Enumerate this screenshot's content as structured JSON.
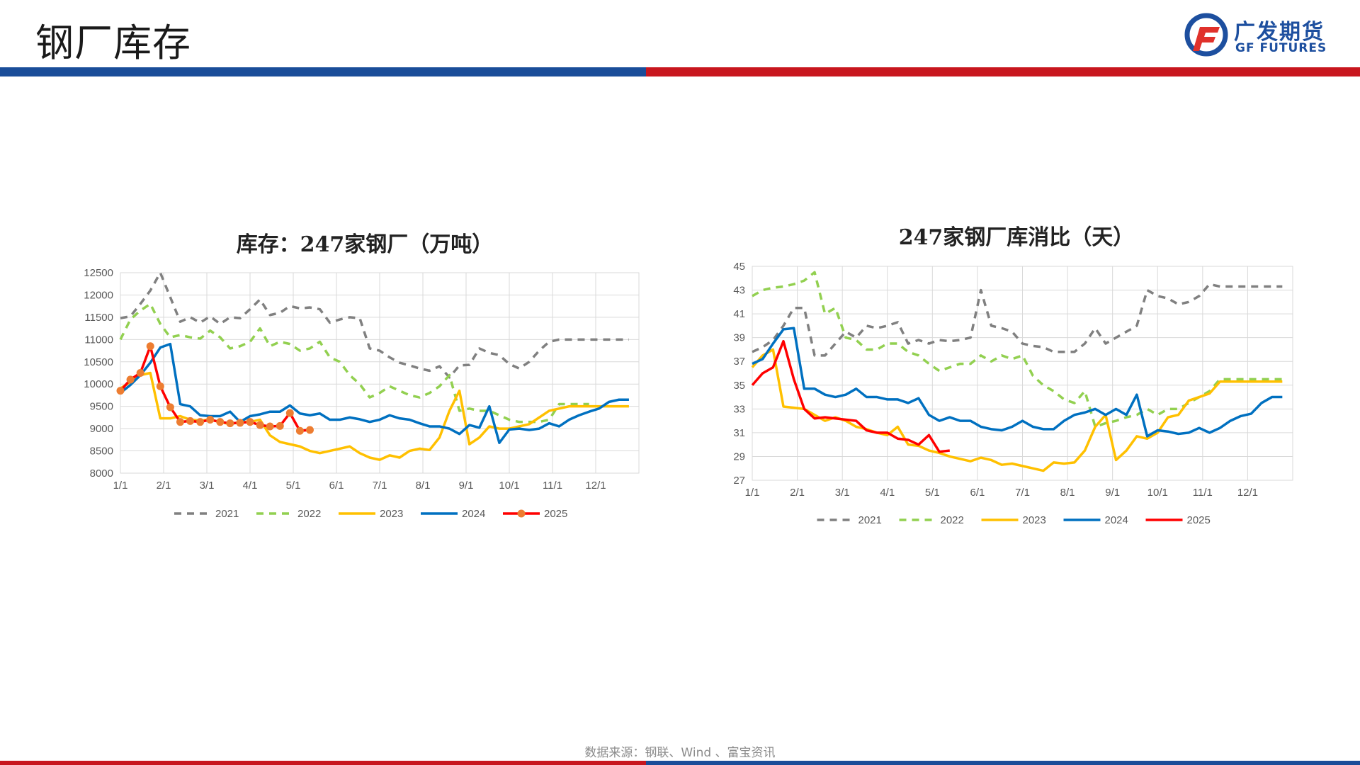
{
  "header": {
    "title": "钢厂库存"
  },
  "logo": {
    "cn": "广发期货",
    "en": "GF FUTURES"
  },
  "colors": {
    "blue": "#1a4d99",
    "red": "#c8161e",
    "c2021": "#808080",
    "c2022": "#92d050",
    "c2023": "#ffc000",
    "c2024": "#0070c0",
    "c2025": "#ff0000",
    "marker2025": "#ed7d31"
  },
  "source": "数据来源：钢联、Wind 、富宝资讯",
  "chart_data": [
    {
      "type": "line",
      "title": "库存：247家钢厂（万吨）",
      "xlabel": "",
      "ylabel": "",
      "x_ticks": [
        "1/1",
        "2/1",
        "3/1",
        "4/1",
        "5/1",
        "6/1",
        "7/1",
        "8/1",
        "9/1",
        "10/1",
        "11/1",
        "12/1"
      ],
      "x_range": [
        0,
        52
      ],
      "y_ticks": [
        "8000",
        "8500",
        "9000",
        "9500",
        "10000",
        "10500",
        "11000",
        "11500",
        "12000",
        "12500"
      ],
      "ylim": [
        8000,
        12500
      ],
      "grid": true,
      "legend": "bottom",
      "series": [
        {
          "name": "2021",
          "color": "#808080",
          "dash": "10,8",
          "marker": false,
          "x": [
            0,
            1,
            2,
            3,
            4,
            5,
            6,
            7,
            8,
            9,
            10,
            11,
            12,
            13,
            14,
            15,
            16,
            17,
            18,
            19,
            20,
            21,
            22,
            23,
            24,
            25,
            26,
            27,
            28,
            29,
            30,
            31,
            32,
            33,
            34,
            35,
            36,
            37,
            38,
            39,
            40,
            41,
            42,
            43,
            44,
            45,
            46,
            47,
            48,
            49,
            50,
            51
          ],
          "values": [
            11480,
            11520,
            11800,
            12100,
            12500,
            11950,
            11400,
            11500,
            11380,
            11520,
            11350,
            11500,
            11480,
            11680,
            11900,
            11550,
            11600,
            11750,
            11700,
            11720,
            11680,
            11380,
            11450,
            11500,
            11480,
            10800,
            10750,
            10600,
            10480,
            10420,
            10350,
            10300,
            10400,
            10150,
            10420,
            10430,
            10800,
            10700,
            10650,
            10450,
            10350,
            10500,
            10750,
            10950,
            11000,
            11000,
            11000,
            11000,
            11000,
            11000,
            11000,
            11000
          ]
        },
        {
          "name": "2022",
          "color": "#92d050",
          "dash": "10,8",
          "marker": false,
          "x": [
            0,
            1,
            2,
            3,
            4,
            5,
            6,
            7,
            8,
            9,
            10,
            11,
            12,
            13,
            14,
            15,
            16,
            17,
            18,
            19,
            20,
            21,
            22,
            23,
            24,
            25,
            26,
            27,
            28,
            29,
            30,
            31,
            32,
            33,
            34,
            35,
            36,
            37,
            38,
            39,
            40,
            41,
            42,
            43,
            44,
            45,
            46,
            47
          ],
          "values": [
            11000,
            11450,
            11650,
            11800,
            11350,
            11050,
            11100,
            11050,
            11020,
            11200,
            11050,
            10800,
            10850,
            10950,
            11250,
            10850,
            10950,
            10900,
            10750,
            10800,
            10950,
            10600,
            10500,
            10200,
            10000,
            9700,
            9800,
            9950,
            9850,
            9750,
            9700,
            9800,
            9950,
            10200,
            9400,
            9450,
            9400,
            9400,
            9300,
            9200,
            9150,
            9150,
            9150,
            9200,
            9550,
            9550,
            9550,
            9550
          ]
        },
        {
          "name": "2023",
          "color": "#ffc000",
          "dash": "",
          "marker": false,
          "x": [
            0,
            1,
            2,
            3,
            4,
            5,
            6,
            7,
            8,
            9,
            10,
            11,
            12,
            13,
            14,
            15,
            16,
            17,
            18,
            19,
            20,
            21,
            22,
            23,
            24,
            25,
            26,
            27,
            28,
            29,
            30,
            31,
            32,
            33,
            34,
            35,
            36,
            37,
            38,
            39,
            40,
            41,
            42,
            43,
            44,
            45,
            46,
            47,
            48,
            49,
            50,
            51
          ],
          "values": [
            9900,
            10050,
            10200,
            10250,
            9230,
            9230,
            9280,
            9200,
            9180,
            9200,
            9150,
            9100,
            9150,
            9150,
            9200,
            8850,
            8700,
            8650,
            8600,
            8500,
            8450,
            8500,
            8550,
            8600,
            8450,
            8350,
            8300,
            8400,
            8350,
            8500,
            8550,
            8520,
            8800,
            9400,
            9850,
            8650,
            8800,
            9050,
            9000,
            9000,
            9050,
            9100,
            9250,
            9400,
            9450,
            9500,
            9500,
            9500,
            9500,
            9500,
            9500,
            9500
          ]
        },
        {
          "name": "2024",
          "color": "#0070c0",
          "dash": "",
          "marker": false,
          "x": [
            0,
            1,
            2,
            3,
            4,
            5,
            6,
            7,
            8,
            9,
            10,
            11,
            12,
            13,
            14,
            15,
            16,
            17,
            18,
            19,
            20,
            21,
            22,
            23,
            24,
            25,
            26,
            27,
            28,
            29,
            30,
            31,
            32,
            33,
            34,
            35,
            36,
            37,
            38,
            39,
            40,
            41,
            42,
            43,
            44,
            45,
            46,
            47,
            48,
            49,
            50,
            51
          ],
          "values": [
            9800,
            9980,
            10200,
            10480,
            10820,
            10900,
            9550,
            9500,
            9300,
            9280,
            9280,
            9380,
            9150,
            9280,
            9320,
            9380,
            9380,
            9520,
            9340,
            9300,
            9340,
            9200,
            9200,
            9250,
            9210,
            9150,
            9200,
            9300,
            9230,
            9200,
            9120,
            9050,
            9050,
            9000,
            8880,
            9080,
            9020,
            9500,
            8680,
            8980,
            9000,
            8970,
            9000,
            9120,
            9050,
            9200,
            9300,
            9380,
            9450,
            9600,
            9650,
            9650
          ]
        },
        {
          "name": "2025",
          "color": "#ff0000",
          "dash": "",
          "marker": true,
          "x": [
            0,
            1,
            2,
            3,
            4,
            5,
            6,
            7,
            8,
            9,
            10,
            11,
            12,
            13,
            14,
            15,
            16,
            17,
            18,
            19
          ],
          "values": [
            9850,
            10100,
            10250,
            10850,
            9950,
            9480,
            9150,
            9170,
            9150,
            9200,
            9150,
            9120,
            9130,
            9150,
            9080,
            9050,
            9060,
            9350,
            8950,
            8970
          ]
        }
      ]
    },
    {
      "type": "line",
      "title": "247家钢厂库消比（天）",
      "xlabel": "",
      "ylabel": "",
      "x_ticks": [
        "1/1",
        "2/1",
        "3/1",
        "4/1",
        "5/1",
        "6/1",
        "7/1",
        "8/1",
        "9/1",
        "10/1",
        "11/1",
        "12/1"
      ],
      "x_range": [
        0,
        52
      ],
      "y_ticks": [
        "27",
        "29",
        "31",
        "33",
        "35",
        "37",
        "39",
        "41",
        "43",
        "45"
      ],
      "ylim": [
        27,
        45
      ],
      "grid": true,
      "legend": "bottom",
      "series": [
        {
          "name": "2021",
          "color": "#808080",
          "dash": "10,8",
          "marker": false,
          "x": [
            0,
            1,
            2,
            3,
            4,
            5,
            6,
            7,
            8,
            9,
            10,
            11,
            12,
            13,
            14,
            15,
            16,
            17,
            18,
            19,
            20,
            21,
            22,
            23,
            24,
            25,
            26,
            27,
            28,
            29,
            30,
            31,
            32,
            33,
            34,
            35,
            36,
            37,
            38,
            39,
            40,
            41,
            42,
            43,
            44,
            45,
            46,
            47,
            48,
            49,
            50,
            51
          ],
          "values": [
            37.8,
            38.2,
            38.8,
            40.0,
            41.5,
            41.5,
            37.5,
            37.5,
            38.5,
            39.5,
            39.0,
            40.0,
            39.8,
            40.0,
            40.3,
            38.5,
            38.8,
            38.5,
            38.8,
            38.7,
            38.8,
            39.0,
            43.0,
            40.0,
            39.8,
            39.5,
            38.5,
            38.3,
            38.2,
            37.8,
            37.8,
            37.8,
            38.5,
            39.8,
            38.5,
            39.0,
            39.5,
            40.0,
            43.0,
            42.5,
            42.3,
            41.8,
            42.0,
            42.5,
            43.5,
            43.3,
            43.3,
            43.3,
            43.3,
            43.3,
            43.3,
            43.3
          ]
        },
        {
          "name": "2022",
          "color": "#92d050",
          "dash": "10,8",
          "marker": false,
          "x": [
            0,
            1,
            2,
            3,
            4,
            5,
            6,
            7,
            8,
            9,
            10,
            11,
            12,
            13,
            14,
            15,
            16,
            17,
            18,
            19,
            20,
            21,
            22,
            23,
            24,
            25,
            26,
            27,
            28,
            29,
            30,
            31,
            32,
            33,
            34,
            35,
            36,
            37,
            38,
            39,
            40,
            41,
            42,
            43,
            44,
            45,
            46,
            47,
            48,
            49,
            50,
            51
          ],
          "values": [
            42.5,
            43.0,
            43.2,
            43.3,
            43.5,
            43.8,
            44.5,
            41.0,
            41.5,
            39.0,
            38.8,
            38.0,
            38.0,
            38.5,
            38.5,
            37.8,
            37.5,
            36.8,
            36.2,
            36.5,
            36.8,
            36.8,
            37.5,
            37.0,
            37.5,
            37.2,
            37.5,
            35.8,
            35.0,
            34.5,
            33.8,
            33.5,
            34.5,
            31.5,
            31.8,
            32.0,
            32.3,
            32.5,
            33.0,
            32.5,
            33.0,
            33.0,
            33.5,
            34.0,
            34.5,
            35.5,
            35.5,
            35.5,
            35.5,
            35.5,
            35.5,
            35.5
          ]
        },
        {
          "name": "2023",
          "color": "#ffc000",
          "dash": "",
          "marker": false,
          "x": [
            0,
            1,
            2,
            3,
            4,
            5,
            6,
            7,
            8,
            9,
            10,
            11,
            12,
            13,
            14,
            15,
            16,
            17,
            18,
            19,
            20,
            21,
            22,
            23,
            24,
            25,
            26,
            27,
            28,
            29,
            30,
            31,
            32,
            33,
            34,
            35,
            36,
            37,
            38,
            39,
            40,
            41,
            42,
            43,
            44,
            45,
            46,
            47,
            48,
            49,
            50,
            51
          ],
          "values": [
            36.5,
            37.5,
            38.0,
            33.2,
            33.1,
            33.0,
            32.5,
            32.0,
            32.3,
            32.0,
            31.5,
            31.3,
            31.0,
            30.8,
            31.5,
            30.0,
            29.9,
            29.5,
            29.3,
            29.0,
            28.8,
            28.6,
            28.9,
            28.7,
            28.3,
            28.4,
            28.2,
            28.0,
            27.8,
            28.5,
            28.4,
            28.5,
            29.5,
            31.5,
            32.5,
            28.7,
            29.5,
            30.7,
            30.5,
            31.0,
            32.3,
            32.5,
            33.7,
            34.0,
            34.3,
            35.3,
            35.3,
            35.3,
            35.3,
            35.3,
            35.3,
            35.3
          ]
        },
        {
          "name": "2024",
          "color": "#0070c0",
          "dash": "",
          "marker": false,
          "x": [
            0,
            1,
            2,
            3,
            4,
            5,
            6,
            7,
            8,
            9,
            10,
            11,
            12,
            13,
            14,
            15,
            16,
            17,
            18,
            19,
            20,
            21,
            22,
            23,
            24,
            25,
            26,
            27,
            28,
            29,
            30,
            31,
            32,
            33,
            34,
            35,
            36,
            37,
            38,
            39,
            40,
            41,
            42,
            43,
            44,
            45,
            46,
            47,
            48,
            49,
            50,
            51
          ],
          "values": [
            36.8,
            37.2,
            38.5,
            39.7,
            39.8,
            34.7,
            34.7,
            34.2,
            34.0,
            34.2,
            34.7,
            34.0,
            34.0,
            33.8,
            33.8,
            33.5,
            33.9,
            32.5,
            32.0,
            32.3,
            32.0,
            32.0,
            31.5,
            31.3,
            31.2,
            31.5,
            32.0,
            31.5,
            31.3,
            31.3,
            32.0,
            32.5,
            32.7,
            33.0,
            32.5,
            33.0,
            32.5,
            34.2,
            30.7,
            31.2,
            31.1,
            30.9,
            31.0,
            31.4,
            31.0,
            31.4,
            32.0,
            32.4,
            32.6,
            33.5,
            34.0,
            34.0
          ]
        },
        {
          "name": "2025",
          "color": "#ff0000",
          "dash": "",
          "marker": false,
          "x": [
            0,
            1,
            2,
            3,
            4,
            5,
            6,
            7,
            8,
            9,
            10,
            11,
            12,
            13,
            14,
            15,
            16,
            17,
            18,
            19
          ],
          "values": [
            35.0,
            36.0,
            36.5,
            38.7,
            35.5,
            33.0,
            32.2,
            32.3,
            32.2,
            32.1,
            32.0,
            31.2,
            31.0,
            31.0,
            30.5,
            30.4,
            30.0,
            30.8,
            29.4,
            29.5
          ]
        }
      ]
    }
  ]
}
